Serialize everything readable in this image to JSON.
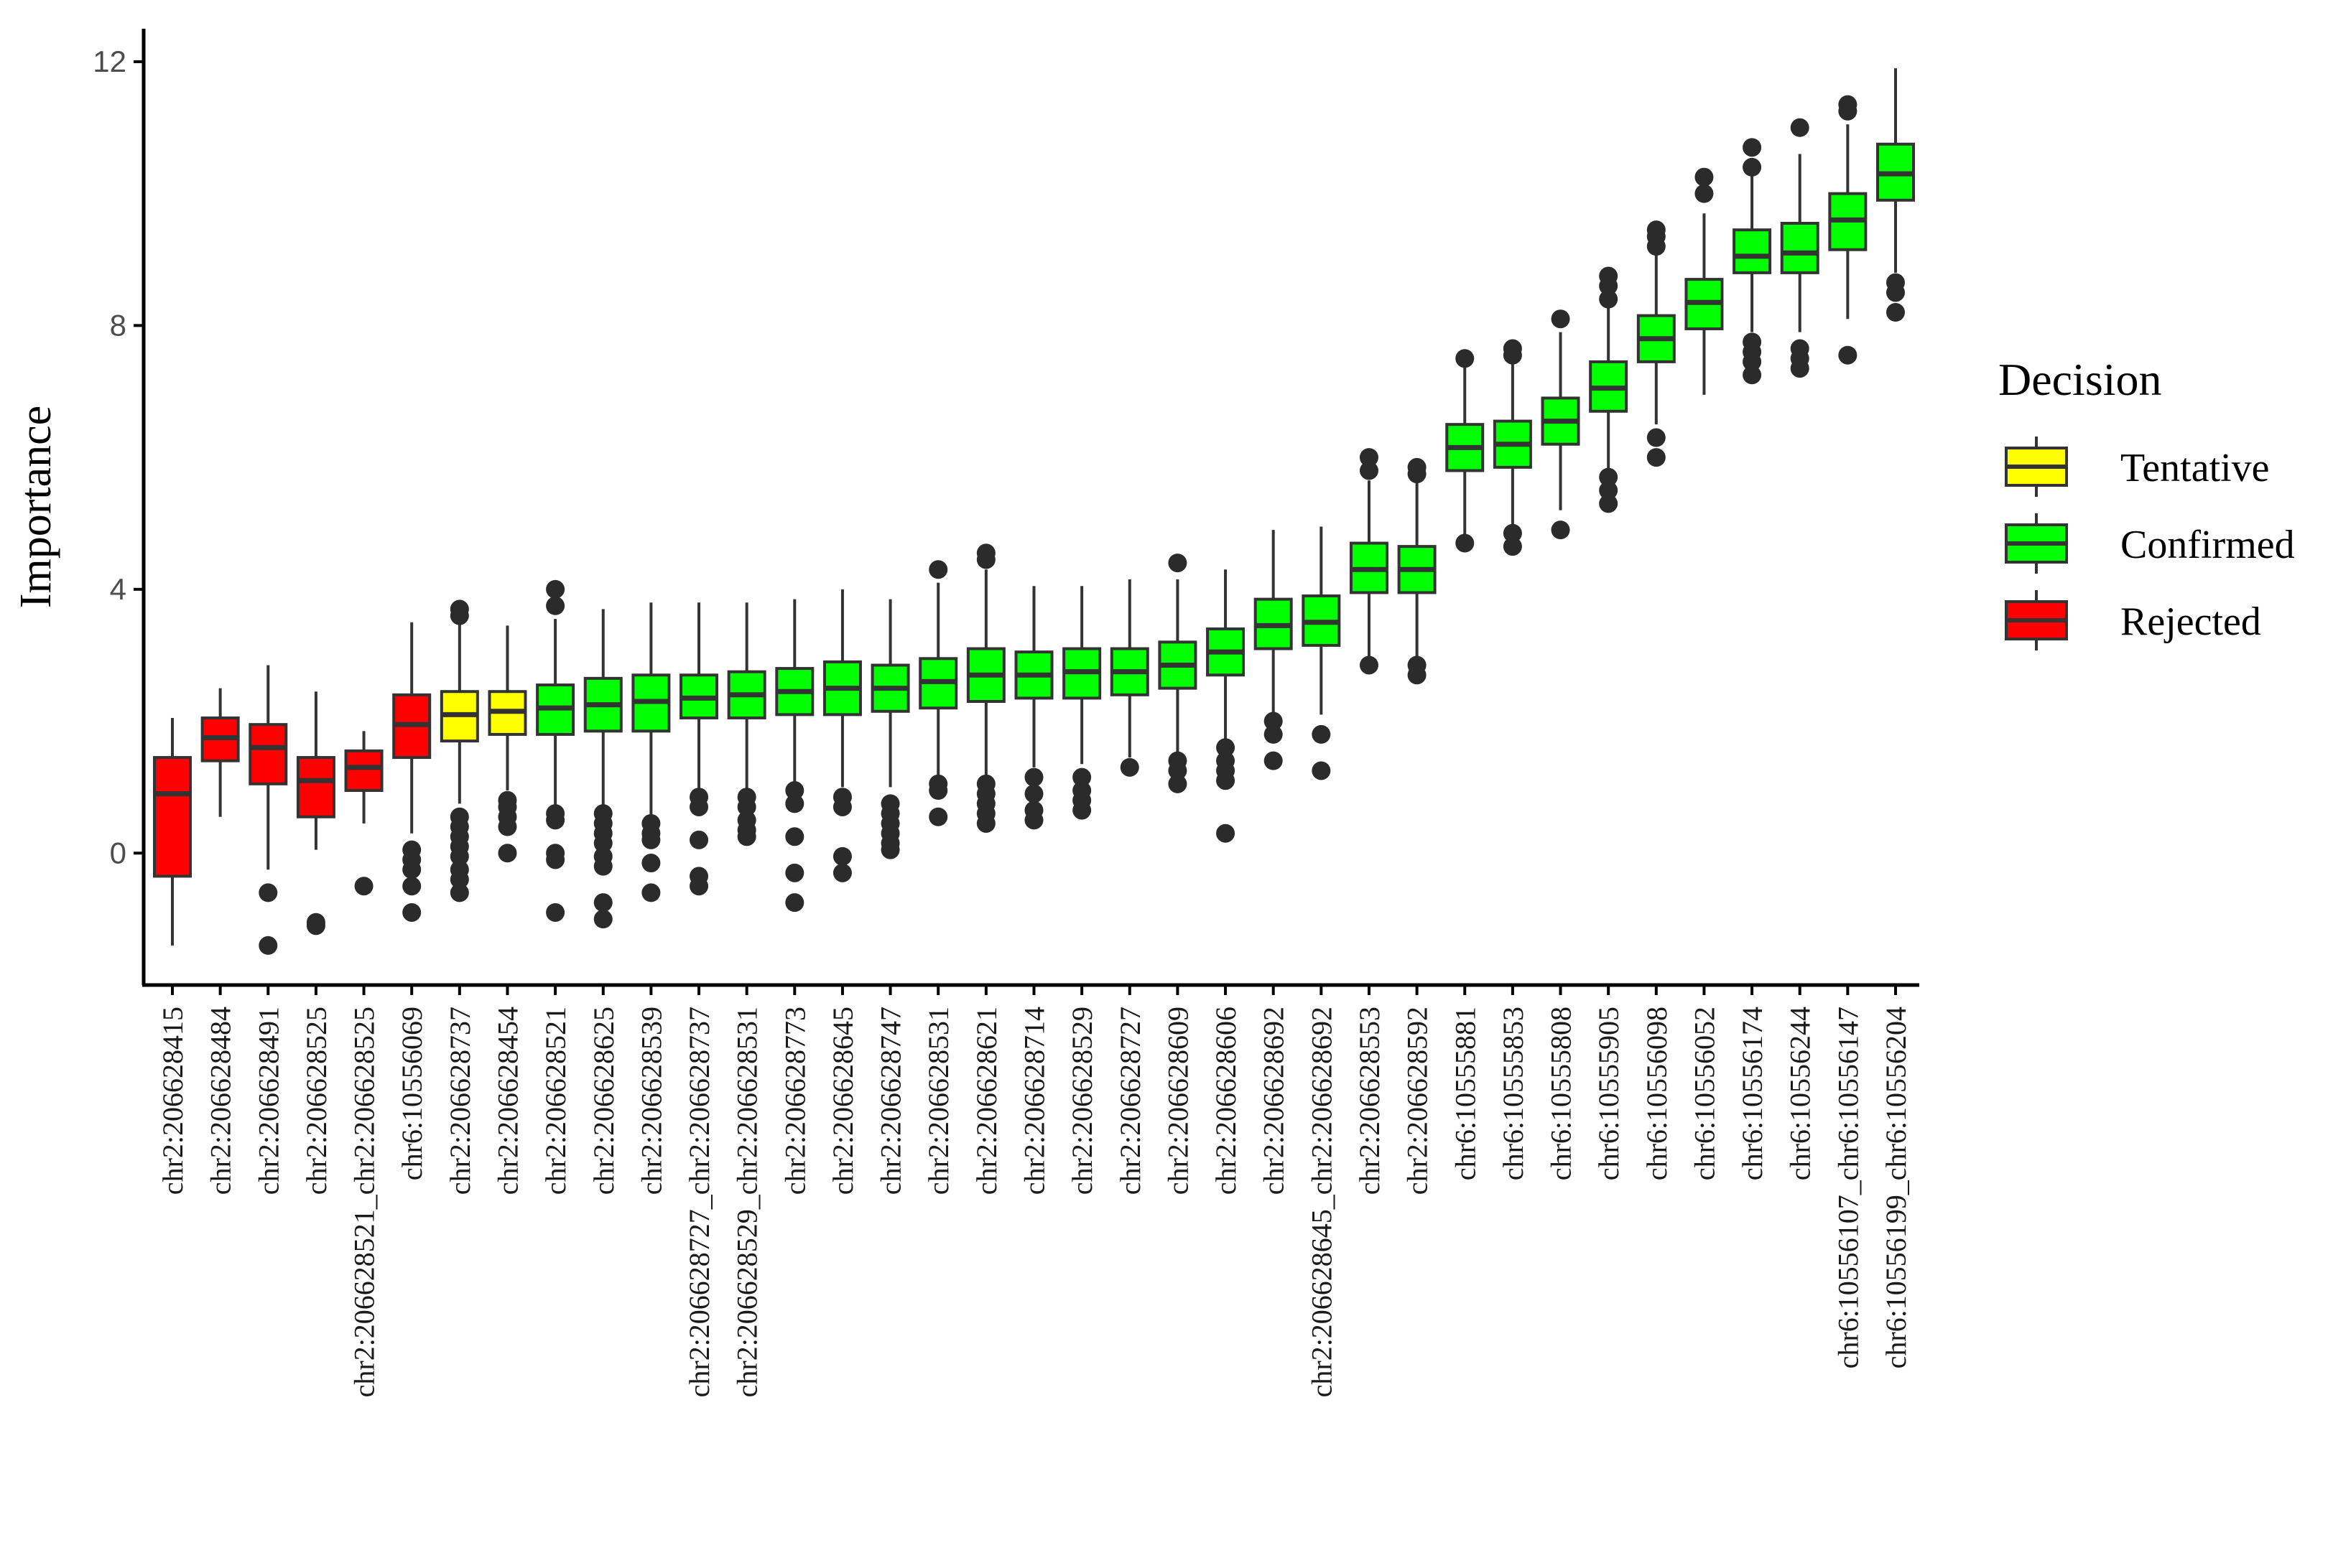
{
  "colors": {
    "Tentative": "#FFFF00",
    "Confirmed": "#00FF00",
    "Rejected": "#FF0000",
    "outline": "#333333",
    "outlier": "#2b2b2b"
  },
  "chart_data": {
    "type": "boxplot",
    "title": "",
    "xlabel": "",
    "ylabel": "Importance",
    "ylim": [
      -2,
      12.5
    ],
    "yticks": [
      0,
      4,
      8,
      12
    ],
    "grid": false,
    "legend_position": "right",
    "legend": {
      "title": "Decision",
      "entries": [
        {
          "label": "Tentative",
          "decision": "Tentative"
        },
        {
          "label": "Confirmed",
          "decision": "Confirmed"
        },
        {
          "label": "Rejected",
          "decision": "Rejected"
        }
      ]
    },
    "boxes": [
      {
        "label": "chr2:206628415",
        "decision": "Rejected",
        "whisker_low": -1.4,
        "q1": -0.35,
        "median": 0.9,
        "q3": 1.45,
        "whisker_high": 2.05,
        "outliers": []
      },
      {
        "label": "chr2:206628484",
        "decision": "Rejected",
        "whisker_low": 0.55,
        "q1": 1.4,
        "median": 1.75,
        "q3": 2.05,
        "whisker_high": 2.5,
        "outliers": []
      },
      {
        "label": "chr2:206628491",
        "decision": "Rejected",
        "whisker_low": -0.25,
        "q1": 1.05,
        "median": 1.6,
        "q3": 1.95,
        "whisker_high": 2.85,
        "outliers": [
          -0.6,
          -1.4
        ]
      },
      {
        "label": "chr2:206628525",
        "decision": "Rejected",
        "whisker_low": 0.05,
        "q1": 0.55,
        "median": 1.1,
        "q3": 1.45,
        "whisker_high": 2.45,
        "outliers": [
          -1.05,
          -1.1
        ]
      },
      {
        "label": "chr2:206628521_chr2:206628525",
        "decision": "Rejected",
        "whisker_low": 0.45,
        "q1": 0.95,
        "median": 1.3,
        "q3": 1.55,
        "whisker_high": 1.85,
        "outliers": [
          -0.5
        ]
      },
      {
        "label": "chr6:10556069",
        "decision": "Rejected",
        "whisker_low": 0.3,
        "q1": 1.45,
        "median": 1.95,
        "q3": 2.4,
        "whisker_high": 3.5,
        "outliers": [
          0.05,
          -0.1,
          -0.25,
          -0.5,
          -0.9
        ]
      },
      {
        "label": "chr2:206628737",
        "decision": "Tentative",
        "whisker_low": 0.75,
        "q1": 1.7,
        "median": 2.1,
        "q3": 2.45,
        "whisker_high": 3.55,
        "outliers": [
          3.7,
          3.6,
          0.55,
          0.4,
          0.25,
          0.1,
          -0.05,
          -0.25,
          -0.4,
          -0.6
        ]
      },
      {
        "label": "chr2:206628454",
        "decision": "Tentative",
        "whisker_low": 0.95,
        "q1": 1.8,
        "median": 2.15,
        "q3": 2.45,
        "whisker_high": 3.45,
        "outliers": [
          0.8,
          0.7,
          0.55,
          0.4,
          0.0
        ]
      },
      {
        "label": "chr2:206628521",
        "decision": "Confirmed",
        "whisker_low": 0.7,
        "q1": 1.8,
        "median": 2.2,
        "q3": 2.55,
        "whisker_high": 3.55,
        "outliers": [
          4.0,
          3.75,
          0.6,
          0.5,
          0.0,
          -0.1,
          -0.9
        ]
      },
      {
        "label": "chr2:206628625",
        "decision": "Confirmed",
        "whisker_low": 0.7,
        "q1": 1.85,
        "median": 2.25,
        "q3": 2.65,
        "whisker_high": 3.7,
        "outliers": [
          0.6,
          0.45,
          0.3,
          0.15,
          -0.05,
          -0.2,
          -0.75,
          -1.0
        ]
      },
      {
        "label": "chr2:206628539",
        "decision": "Confirmed",
        "whisker_low": 0.5,
        "q1": 1.85,
        "median": 2.3,
        "q3": 2.7,
        "whisker_high": 3.8,
        "outliers": [
          0.45,
          0.3,
          0.2,
          -0.15,
          -0.6
        ]
      },
      {
        "label": "chr2:206628727_chr2:206628737",
        "decision": "Confirmed",
        "whisker_low": 0.95,
        "q1": 2.05,
        "median": 2.35,
        "q3": 2.7,
        "whisker_high": 3.8,
        "outliers": [
          0.85,
          0.7,
          0.2,
          -0.35,
          -0.5
        ]
      },
      {
        "label": "chr2:206628529_chr2:206628531",
        "decision": "Confirmed",
        "whisker_low": 0.95,
        "q1": 2.05,
        "median": 2.4,
        "q3": 2.75,
        "whisker_high": 3.8,
        "outliers": [
          0.85,
          0.7,
          0.5,
          0.35,
          0.25
        ]
      },
      {
        "label": "chr2:206628773",
        "decision": "Confirmed",
        "whisker_low": 1.05,
        "q1": 2.1,
        "median": 2.45,
        "q3": 2.8,
        "whisker_high": 3.85,
        "outliers": [
          0.95,
          0.75,
          0.25,
          -0.3,
          -0.75
        ]
      },
      {
        "label": "chr2:206628645",
        "decision": "Confirmed",
        "whisker_low": 1.0,
        "q1": 2.1,
        "median": 2.5,
        "q3": 2.9,
        "whisker_high": 4.0,
        "outliers": [
          0.85,
          0.7,
          -0.05,
          -0.3
        ]
      },
      {
        "label": "chr2:206628747",
        "decision": "Confirmed",
        "whisker_low": 1.0,
        "q1": 2.15,
        "median": 2.5,
        "q3": 2.85,
        "whisker_high": 3.85,
        "outliers": [
          0.75,
          0.6,
          0.45,
          0.3,
          0.15,
          0.05
        ]
      },
      {
        "label": "chr2:206628531",
        "decision": "Confirmed",
        "whisker_low": 1.15,
        "q1": 2.2,
        "median": 2.6,
        "q3": 2.95,
        "whisker_high": 4.1,
        "outliers": [
          4.3,
          1.05,
          0.95,
          0.55
        ]
      },
      {
        "label": "chr2:206628621",
        "decision": "Confirmed",
        "whisker_low": 1.1,
        "q1": 2.3,
        "median": 2.7,
        "q3": 3.1,
        "whisker_high": 4.3,
        "outliers": [
          4.55,
          4.45,
          1.05,
          0.9,
          0.75,
          0.6,
          0.45
        ]
      },
      {
        "label": "chr2:206628714",
        "decision": "Confirmed",
        "whisker_low": 1.3,
        "q1": 2.35,
        "median": 2.7,
        "q3": 3.05,
        "whisker_high": 4.05,
        "outliers": [
          1.15,
          0.9,
          0.65,
          0.5
        ]
      },
      {
        "label": "chr2:206628529",
        "decision": "Confirmed",
        "whisker_low": 1.35,
        "q1": 2.35,
        "median": 2.75,
        "q3": 3.1,
        "whisker_high": 4.05,
        "outliers": [
          1.15,
          0.95,
          0.8,
          0.65
        ]
      },
      {
        "label": "chr2:206628727",
        "decision": "Confirmed",
        "whisker_low": 1.45,
        "q1": 2.4,
        "median": 2.75,
        "q3": 3.1,
        "whisker_high": 4.15,
        "outliers": [
          1.3
        ]
      },
      {
        "label": "chr2:206628609",
        "decision": "Confirmed",
        "whisker_low": 1.5,
        "q1": 2.5,
        "median": 2.85,
        "q3": 3.2,
        "whisker_high": 4.15,
        "outliers": [
          4.4,
          1.4,
          1.25,
          1.05
        ]
      },
      {
        "label": "chr2:206628606",
        "decision": "Confirmed",
        "whisker_low": 1.7,
        "q1": 2.7,
        "median": 3.05,
        "q3": 3.4,
        "whisker_high": 4.3,
        "outliers": [
          1.6,
          1.4,
          1.25,
          1.1,
          0.3
        ]
      },
      {
        "label": "chr2:206628692",
        "decision": "Confirmed",
        "whisker_low": 2.1,
        "q1": 3.1,
        "median": 3.45,
        "q3": 3.85,
        "whisker_high": 4.9,
        "outliers": [
          2.0,
          1.8,
          1.4
        ]
      },
      {
        "label": "chr2:206628645_chr2:206628692",
        "decision": "Confirmed",
        "whisker_low": 2.1,
        "q1": 3.15,
        "median": 3.5,
        "q3": 3.9,
        "whisker_high": 4.95,
        "outliers": [
          1.8,
          1.25
        ]
      },
      {
        "label": "chr2:206628553",
        "decision": "Confirmed",
        "whisker_low": 2.95,
        "q1": 3.95,
        "median": 4.3,
        "q3": 4.7,
        "whisker_high": 5.65,
        "outliers": [
          6.0,
          5.8,
          2.85
        ]
      },
      {
        "label": "chr2:206628592",
        "decision": "Confirmed",
        "whisker_low": 2.95,
        "q1": 3.95,
        "median": 4.3,
        "q3": 4.65,
        "whisker_high": 5.65,
        "outliers": [
          5.85,
          5.75,
          2.85,
          2.7
        ]
      },
      {
        "label": "chr6:10555881",
        "decision": "Confirmed",
        "whisker_low": 4.8,
        "q1": 5.8,
        "median": 6.15,
        "q3": 6.5,
        "whisker_high": 7.4,
        "outliers": [
          7.5,
          4.7
        ]
      },
      {
        "label": "chr6:10555853",
        "decision": "Confirmed",
        "whisker_low": 4.9,
        "q1": 5.85,
        "median": 6.2,
        "q3": 6.55,
        "whisker_high": 7.5,
        "outliers": [
          7.65,
          7.55,
          4.85,
          4.65
        ]
      },
      {
        "label": "chr6:10555808",
        "decision": "Confirmed",
        "whisker_low": 5.2,
        "q1": 6.2,
        "median": 6.55,
        "q3": 6.9,
        "whisker_high": 7.9,
        "outliers": [
          8.1,
          4.9
        ]
      },
      {
        "label": "chr6:10555905",
        "decision": "Confirmed",
        "whisker_low": 5.8,
        "q1": 6.7,
        "median": 7.05,
        "q3": 7.45,
        "whisker_high": 8.3,
        "outliers": [
          8.75,
          8.6,
          8.4,
          5.7,
          5.5,
          5.3
        ]
      },
      {
        "label": "chr6:10556098",
        "decision": "Confirmed",
        "whisker_low": 6.5,
        "q1": 7.45,
        "median": 7.8,
        "q3": 8.15,
        "whisker_high": 9.1,
        "outliers": [
          9.45,
          9.35,
          9.2,
          6.3,
          6.0
        ]
      },
      {
        "label": "chr6:10556052",
        "decision": "Confirmed",
        "whisker_low": 6.95,
        "q1": 7.95,
        "median": 8.35,
        "q3": 8.7,
        "whisker_high": 9.7,
        "outliers": [
          10.25,
          10.0
        ]
      },
      {
        "label": "chr6:10556174",
        "decision": "Confirmed",
        "whisker_low": 7.9,
        "q1": 8.8,
        "median": 9.05,
        "q3": 9.45,
        "whisker_high": 10.3,
        "outliers": [
          10.7,
          10.4,
          7.75,
          7.6,
          7.45,
          7.25
        ]
      },
      {
        "label": "chr6:10556244",
        "decision": "Confirmed",
        "whisker_low": 7.9,
        "q1": 8.8,
        "median": 9.1,
        "q3": 9.55,
        "whisker_high": 10.6,
        "outliers": [
          11.0,
          7.65,
          7.5,
          7.35
        ]
      },
      {
        "label": "chr6:10556107_chr6:10556147",
        "decision": "Confirmed",
        "whisker_low": 8.1,
        "q1": 9.15,
        "median": 9.6,
        "q3": 10.0,
        "whisker_high": 11.05,
        "outliers": [
          11.35,
          11.25,
          7.55
        ]
      },
      {
        "label": "chr6:10556199_chr6:10556204",
        "decision": "Confirmed",
        "whisker_low": 8.8,
        "q1": 9.9,
        "median": 10.3,
        "q3": 10.75,
        "whisker_high": 11.9,
        "outliers": [
          8.65,
          8.5,
          8.2
        ]
      }
    ]
  }
}
